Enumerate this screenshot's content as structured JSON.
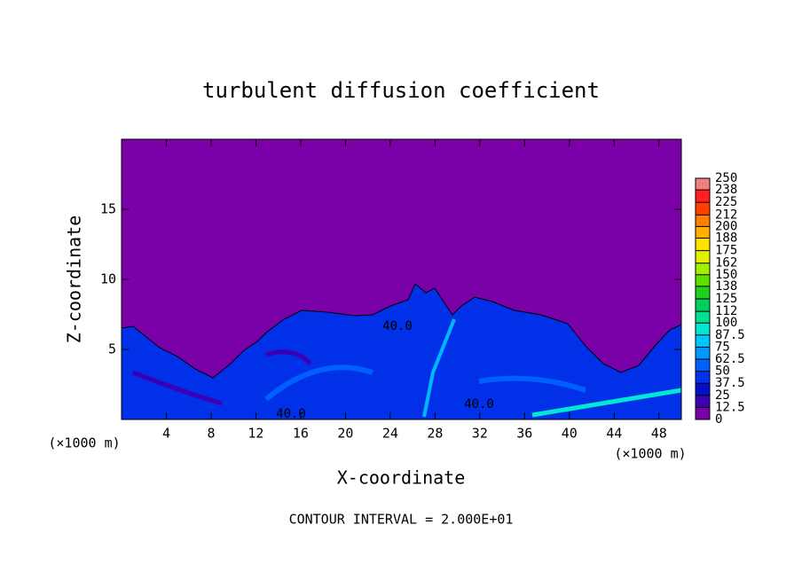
{
  "chart_data": {
    "type": "contour",
    "title": "turbulent diffusion coefficient",
    "x_label": "X-coordinate",
    "y_label": "Z-coordinate",
    "x_unit": "(×1000 m)",
    "y_unit": "(×1000 m)",
    "xlim": [
      0,
      50
    ],
    "xticks": [
      4,
      8,
      12,
      16,
      20,
      24,
      28,
      32,
      36,
      40,
      44,
      48
    ],
    "ylim": [
      0,
      20
    ],
    "yticks": [
      5,
      10,
      15
    ],
    "footer": "CONTOUR INTERVAL = 2.000E+01",
    "contour_labels": [
      "40.0",
      "40.0",
      "40.0"
    ],
    "colorbar": {
      "lim": [
        0,
        250
      ],
      "ticks": [
        0,
        12.5,
        25,
        37.5,
        50,
        62.5,
        75,
        87.5,
        100,
        112,
        125,
        138,
        150,
        162,
        175,
        188,
        200,
        212,
        225,
        238,
        250
      ],
      "colors": [
        "#7a00a8",
        "#3c00b4",
        "#0010c8",
        "#0030f0",
        "#0060ff",
        "#0098ff",
        "#00c8ff",
        "#00e8d0",
        "#00e090",
        "#00d060",
        "#20d020",
        "#60e000",
        "#a0f000",
        "#e0f000",
        "#ffe000",
        "#ffb000",
        "#ff8000",
        "#ff4000",
        "#ff2020",
        "#f08080"
      ]
    }
  }
}
